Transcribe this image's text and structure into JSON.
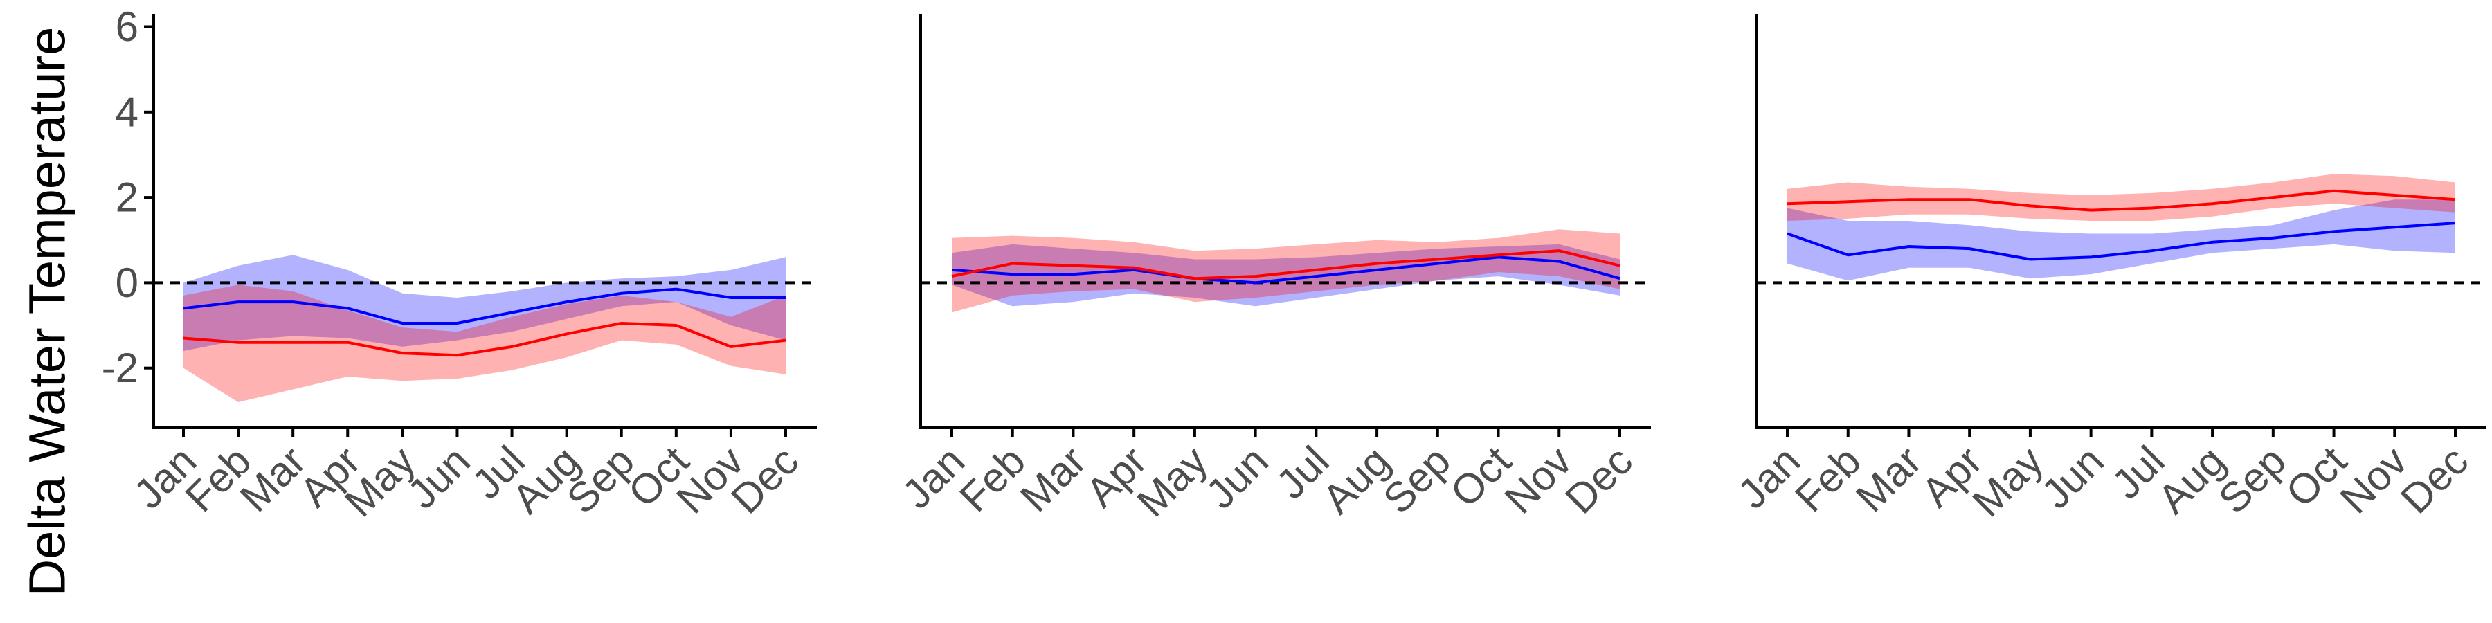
{
  "figure": {
    "ylabel": "Delta Water Temperature",
    "colors": {
      "blue_series": "#0000ff",
      "red_series": "#ff0000",
      "blue_band": "#0000ff",
      "red_band": "#ff0000",
      "reference_line": "#000000",
      "axis": "#000000",
      "tick_text": "#4d4d4d"
    }
  },
  "chart_data": [
    {
      "type": "line",
      "panel": "left",
      "show_y_axis_labels": true,
      "categories": [
        "Jan",
        "Feb",
        "Mar",
        "Apr",
        "May",
        "Jun",
        "Jul",
        "Aug",
        "Sep",
        "Oct",
        "Nov",
        "Dec"
      ],
      "ylim": [
        -3.4,
        6.3
      ],
      "yticks": [
        -2,
        0,
        2,
        4,
        6
      ],
      "ytick_labels": [
        "-2",
        "0",
        "2",
        "4",
        "6"
      ],
      "reference_line": 0,
      "grid": false,
      "series": [
        {
          "color": "#0000ff",
          "values": [
            -0.6,
            -0.45,
            -0.45,
            -0.6,
            -0.95,
            -0.95,
            -0.7,
            -0.45,
            -0.25,
            -0.15,
            -0.35,
            -0.35
          ],
          "lower": [
            -1.6,
            -1.35,
            -1.25,
            -1.3,
            -1.5,
            -1.35,
            -1.15,
            -0.85,
            -0.55,
            -0.45,
            -1.0,
            -1.35
          ],
          "upper": [
            0.0,
            0.4,
            0.65,
            0.3,
            -0.25,
            -0.35,
            -0.2,
            0.0,
            0.1,
            0.15,
            0.3,
            0.6
          ]
        },
        {
          "color": "#ff0000",
          "values": [
            -1.3,
            -1.4,
            -1.4,
            -1.4,
            -1.65,
            -1.7,
            -1.5,
            -1.2,
            -0.95,
            -1.0,
            -1.5,
            -1.35
          ],
          "lower": [
            -2.0,
            -2.8,
            -2.5,
            -2.2,
            -2.3,
            -2.25,
            -2.05,
            -1.75,
            -1.35,
            -1.45,
            -1.95,
            -2.15
          ],
          "upper": [
            -0.3,
            -0.05,
            -0.2,
            -0.65,
            -1.05,
            -1.15,
            -0.8,
            -0.5,
            -0.3,
            -0.45,
            -0.8,
            -0.3
          ]
        }
      ]
    },
    {
      "type": "line",
      "panel": "middle",
      "show_y_axis_labels": false,
      "categories": [
        "Jan",
        "Feb",
        "Mar",
        "Apr",
        "May",
        "Jun",
        "Jul",
        "Aug",
        "Sep",
        "Oct",
        "Nov",
        "Dec"
      ],
      "ylim": [
        -3.4,
        6.3
      ],
      "yticks": [
        -2,
        0,
        2,
        4,
        6
      ],
      "reference_line": 0,
      "grid": false,
      "series": [
        {
          "color": "#0000ff",
          "values": [
            0.3,
            0.2,
            0.2,
            0.3,
            0.1,
            0.0,
            0.15,
            0.3,
            0.45,
            0.6,
            0.5,
            0.1
          ],
          "lower": [
            -0.05,
            -0.55,
            -0.45,
            -0.25,
            -0.35,
            -0.55,
            -0.35,
            -0.15,
            0.05,
            0.15,
            -0.05,
            -0.3
          ],
          "upper": [
            0.7,
            0.9,
            0.8,
            0.7,
            0.55,
            0.55,
            0.6,
            0.7,
            0.8,
            0.85,
            0.9,
            0.55
          ]
        },
        {
          "color": "#ff0000",
          "values": [
            0.15,
            0.45,
            0.4,
            0.35,
            0.1,
            0.15,
            0.3,
            0.45,
            0.55,
            0.65,
            0.75,
            0.4
          ],
          "lower": [
            -0.7,
            -0.3,
            -0.2,
            -0.15,
            -0.45,
            -0.35,
            -0.2,
            -0.05,
            0.05,
            0.25,
            0.15,
            -0.15
          ],
          "upper": [
            1.05,
            1.1,
            1.05,
            0.95,
            0.75,
            0.8,
            0.9,
            1.0,
            0.95,
            1.05,
            1.25,
            1.15
          ]
        }
      ]
    },
    {
      "type": "line",
      "panel": "right",
      "show_y_axis_labels": false,
      "categories": [
        "Jan",
        "Feb",
        "Mar",
        "Apr",
        "May",
        "Jun",
        "Jul",
        "Aug",
        "Sep",
        "Oct",
        "Nov",
        "Dec"
      ],
      "ylim": [
        -3.4,
        6.3
      ],
      "yticks": [
        -2,
        0,
        2,
        4,
        6
      ],
      "reference_line": 0,
      "grid": false,
      "series": [
        {
          "color": "#0000ff",
          "values": [
            1.15,
            0.65,
            0.85,
            0.8,
            0.55,
            0.6,
            0.75,
            0.95,
            1.05,
            1.2,
            1.3,
            1.4
          ],
          "lower": [
            0.45,
            0.05,
            0.35,
            0.35,
            0.1,
            0.2,
            0.45,
            0.7,
            0.8,
            0.9,
            0.75,
            0.7
          ],
          "upper": [
            1.75,
            1.45,
            1.45,
            1.35,
            1.2,
            1.15,
            1.15,
            1.25,
            1.35,
            1.7,
            1.95,
            1.95
          ]
        },
        {
          "color": "#ff0000",
          "values": [
            1.85,
            1.9,
            1.95,
            1.95,
            1.8,
            1.7,
            1.75,
            1.85,
            2.0,
            2.15,
            2.05,
            1.95
          ],
          "lower": [
            1.45,
            1.5,
            1.6,
            1.6,
            1.5,
            1.45,
            1.45,
            1.55,
            1.75,
            1.85,
            1.75,
            1.65
          ],
          "upper": [
            2.2,
            2.35,
            2.25,
            2.2,
            2.1,
            2.05,
            2.1,
            2.2,
            2.35,
            2.55,
            2.5,
            2.35
          ]
        }
      ]
    }
  ]
}
